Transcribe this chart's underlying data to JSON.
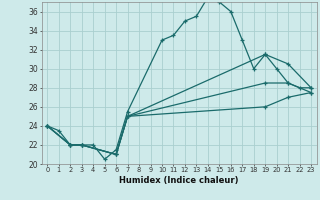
{
  "xlabel": "Humidex (Indice chaleur)",
  "bg_color": "#ceeaea",
  "grid_color": "#aacfcf",
  "line_color": "#1a6b6b",
  "xlim": [
    -0.5,
    23.5
  ],
  "ylim": [
    20,
    37
  ],
  "xtick_labels": [
    "0",
    "1",
    "2",
    "3",
    "4",
    "5",
    "6",
    "7",
    "8",
    "9",
    "10",
    "11",
    "12",
    "13",
    "14",
    "15",
    "16",
    "17",
    "18",
    "19",
    "20",
    "21",
    "22",
    "23"
  ],
  "ytick_values": [
    20,
    22,
    24,
    26,
    28,
    30,
    32,
    34,
    36
  ],
  "line1_x": [
    0,
    1,
    2,
    3,
    4,
    5,
    6,
    7,
    10,
    11,
    12,
    13,
    14,
    15,
    16,
    17,
    18,
    19,
    20,
    21,
    22,
    23
  ],
  "line1_y": [
    24,
    23.5,
    22,
    22,
    22,
    20.5,
    21.5,
    25.5,
    33,
    33.5,
    35,
    35.5,
    37.5,
    37,
    36,
    33,
    30,
    31.5,
    30,
    28.5,
    28,
    28
  ],
  "line2_x": [
    0,
    2,
    3,
    6,
    7,
    19,
    21,
    23
  ],
  "line2_y": [
    24,
    22,
    22,
    21,
    25,
    31.5,
    30.5,
    28
  ],
  "line3_x": [
    0,
    2,
    3,
    6,
    7,
    19,
    21,
    23
  ],
  "line3_y": [
    24,
    22,
    22,
    21,
    25,
    28.5,
    28.5,
    27.5
  ],
  "line4_x": [
    0,
    2,
    3,
    6,
    7,
    19,
    21,
    23
  ],
  "line4_y": [
    24,
    22,
    22,
    21,
    25,
    26,
    27,
    27.5
  ]
}
